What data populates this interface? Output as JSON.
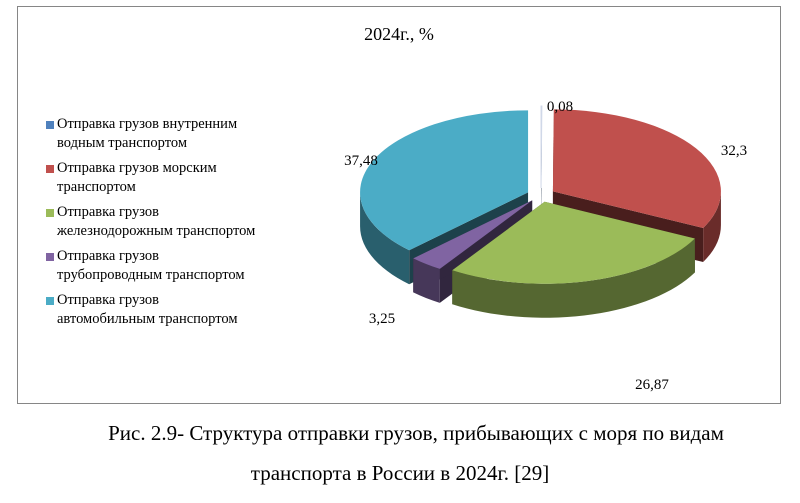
{
  "chart_data": {
    "type": "pie",
    "title": "2024г., %",
    "categories": [
      "Отправка грузов внутренним водным транспортом",
      "Отправка грузов морским транспортом",
      "Отправка грузов железнодорожным транспортом",
      "Отправка грузов трубопроводным транспортом",
      "Отправка грузов автомобильным транспортом"
    ],
    "legend_lines": [
      [
        "Отправка грузов внутренним",
        "водным транспортом"
      ],
      [
        "Отправка грузов морским",
        "транспортом"
      ],
      [
        "Отправка грузов",
        "железнодорожным транспортом"
      ],
      [
        "Отправка грузов",
        "трубопроводным транспортом"
      ],
      [
        "Отправка грузов",
        "автомобильным транспортом"
      ]
    ],
    "values": [
      0.08,
      32.3,
      26.87,
      3.25,
      37.48
    ],
    "value_labels": [
      "0,08",
      "32,3",
      "26,87",
      "3,25",
      "37,48"
    ],
    "colors": [
      "#4F81BD",
      "#C0504D",
      "#9BBB59",
      "#8064A2",
      "#4BACC6"
    ],
    "style": "3d-exploded",
    "legend_position": "left"
  },
  "caption": {
    "line1": "Рис. 2.9- Структура отправки грузов, прибывающих с моря по видам",
    "line2": "транспорта в России в 2024г. [29]"
  }
}
